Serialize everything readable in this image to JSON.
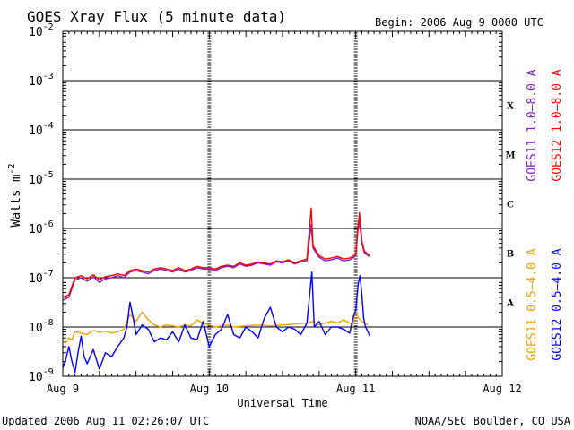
{
  "chart_data": {
    "type": "line",
    "title": "GOES Xray Flux (5 minute data)",
    "begin_label": "Begin:  2006 Aug 9 0000 UTC",
    "xlabel": "Universal Time",
    "ylabel": "Watts m",
    "ylabel_exponent": "-2",
    "yscale": "log",
    "ylim": [
      1e-09,
      0.01
    ],
    "xlim": [
      "Aug 9 00:00",
      "Aug 12 00:00"
    ],
    "x_unit": "hours since Aug 9 00:00 UTC",
    "x_ticks": [
      {
        "x": 0,
        "label": "Aug 9"
      },
      {
        "x": 24,
        "label": "Aug 10"
      },
      {
        "x": 48,
        "label": "Aug 11"
      },
      {
        "x": 72,
        "label": "Aug 12"
      }
    ],
    "y_ticks": [
      {
        "exp": -2,
        "base": "10",
        "sup": "-2"
      },
      {
        "exp": -3,
        "base": "10",
        "sup": "-3"
      },
      {
        "exp": -4,
        "base": "10",
        "sup": "-4"
      },
      {
        "exp": -5,
        "base": "10",
        "sup": "-5"
      },
      {
        "exp": -6,
        "base": "10",
        "sup": "-6"
      },
      {
        "exp": -7,
        "base": "10",
        "sup": "-7"
      },
      {
        "exp": -8,
        "base": "10",
        "sup": "-8"
      },
      {
        "exp": -9,
        "base": "10",
        "sup": "-9"
      }
    ],
    "class_labels": [
      {
        "label": "X",
        "exp": -3.5
      },
      {
        "label": "M",
        "exp": -4.5
      },
      {
        "label": "C",
        "exp": -5.5
      },
      {
        "label": "B",
        "exp": -6.5
      },
      {
        "label": "A",
        "exp": -7.5
      }
    ],
    "grid_horizontal": true,
    "day_markers": true,
    "series": [
      {
        "name": "GOES11 0.5–4.0 A",
        "color": "#f0a000",
        "points": [
          [
            0,
            5e-09
          ],
          [
            0.5,
            4.8e-09
          ],
          [
            1,
            6e-09
          ],
          [
            1.5,
            5.5e-09
          ],
          [
            2,
            8e-09
          ],
          [
            3,
            7.5e-09
          ],
          [
            4,
            7e-09
          ],
          [
            5,
            8.5e-09
          ],
          [
            6,
            7.8e-09
          ],
          [
            7,
            8.2e-09
          ],
          [
            8,
            7.5e-09
          ],
          [
            9,
            8e-09
          ],
          [
            10,
            9e-09
          ],
          [
            11,
            1.8e-08
          ],
          [
            12,
            1.3e-08
          ],
          [
            13,
            2e-08
          ],
          [
            14,
            1.4e-08
          ],
          [
            15,
            1.1e-08
          ],
          [
            16,
            1e-08
          ],
          [
            17,
            1.1e-08
          ],
          [
            18,
            1.05e-08
          ],
          [
            19,
            1e-08
          ],
          [
            20,
            1.1e-08
          ],
          [
            21,
            1.05e-08
          ],
          [
            22,
            1.4e-08
          ],
          [
            23,
            1.2e-08
          ],
          [
            24,
            1.1e-08
          ],
          [
            25,
            1e-08
          ],
          [
            26,
            1.05e-08
          ],
          [
            27,
            1.1e-08
          ],
          [
            28,
            1e-08
          ],
          [
            30,
            1.05e-08
          ],
          [
            32,
            1.1e-08
          ],
          [
            34,
            1.05e-08
          ],
          [
            36,
            1.1e-08
          ],
          [
            38,
            1.15e-08
          ],
          [
            40,
            1.2e-08
          ],
          [
            41,
            1.3e-08
          ],
          [
            42,
            1.1e-08
          ],
          [
            43,
            1.2e-08
          ],
          [
            44,
            1.3e-08
          ],
          [
            45,
            1.2e-08
          ],
          [
            46,
            1.4e-08
          ],
          [
            47,
            1.2e-08
          ],
          [
            47.5,
            1.1e-08
          ],
          [
            48,
            2e-08
          ],
          [
            48.5,
            1.5e-08
          ],
          [
            49,
            1.3e-08
          ],
          [
            49.5,
            1.2e-08
          ],
          [
            50,
            1.1e-08
          ]
        ]
      },
      {
        "name": "GOES12 0.5–4.0 A",
        "color": "#0000ff",
        "points": [
          [
            0,
            1.5e-09
          ],
          [
            0.5,
            2.2e-09
          ],
          [
            1,
            4e-09
          ],
          [
            1.5,
            2e-09
          ],
          [
            2,
            1.2e-09
          ],
          [
            2.5,
            3e-09
          ],
          [
            3,
            6.5e-09
          ],
          [
            3.5,
            2.5e-09
          ],
          [
            4,
            1.8e-09
          ],
          [
            5,
            3.5e-09
          ],
          [
            6,
            1.4e-09
          ],
          [
            7,
            3e-09
          ],
          [
            8,
            2.5e-09
          ],
          [
            9,
            4e-09
          ],
          [
            10,
            6e-09
          ],
          [
            10.5,
            1e-08
          ],
          [
            11,
            3.2e-08
          ],
          [
            11.5,
            1.6e-08
          ],
          [
            12,
            7e-09
          ],
          [
            13,
            1.1e-08
          ],
          [
            14,
            9e-09
          ],
          [
            15,
            5e-09
          ],
          [
            16,
            6e-09
          ],
          [
            17,
            5.5e-09
          ],
          [
            18,
            8e-09
          ],
          [
            19,
            5e-09
          ],
          [
            20,
            1.1e-08
          ],
          [
            21,
            6e-09
          ],
          [
            22,
            5.5e-09
          ],
          [
            23,
            1.3e-08
          ],
          [
            24,
            4e-09
          ],
          [
            25,
            7e-09
          ],
          [
            26,
            9e-09
          ],
          [
            27,
            1.8e-08
          ],
          [
            28,
            7e-09
          ],
          [
            29,
            6e-09
          ],
          [
            30,
            1e-08
          ],
          [
            31,
            8e-09
          ],
          [
            32,
            6e-09
          ],
          [
            33,
            1.5e-08
          ],
          [
            34,
            2.5e-08
          ],
          [
            35,
            1e-08
          ],
          [
            36,
            8e-09
          ],
          [
            37,
            1e-08
          ],
          [
            38,
            9e-09
          ],
          [
            39,
            7e-09
          ],
          [
            40,
            1.2e-08
          ],
          [
            40.8,
            1.3e-07
          ],
          [
            41.2,
            1e-08
          ],
          [
            42,
            1.3e-08
          ],
          [
            43,
            7e-09
          ],
          [
            44,
            1e-08
          ],
          [
            45,
            1e-08
          ],
          [
            46,
            9e-09
          ],
          [
            47,
            7.5e-09
          ],
          [
            47.6,
            1.6e-08
          ],
          [
            48,
            2.2e-08
          ],
          [
            48.4,
            7.5e-08
          ],
          [
            48.7,
            1.1e-07
          ],
          [
            49,
            4.5e-08
          ],
          [
            49.3,
            1.5e-08
          ],
          [
            49.6,
            1e-08
          ],
          [
            50,
            8e-09
          ],
          [
            50.3,
            6.5e-09
          ]
        ]
      },
      {
        "name": "GOES11 1.0–8.0 A",
        "color": "#8020c0",
        "points": [
          [
            0,
            3.5e-08
          ],
          [
            1,
            4e-08
          ],
          [
            2,
            9e-08
          ],
          [
            3,
            1e-07
          ],
          [
            4,
            8.5e-08
          ],
          [
            5,
            1.05e-07
          ],
          [
            6,
            8e-08
          ],
          [
            7,
            9.5e-08
          ],
          [
            8,
            1e-07
          ],
          [
            9,
            1.1e-07
          ],
          [
            10,
            1e-07
          ],
          [
            11,
            1.3e-07
          ],
          [
            12,
            1.4e-07
          ],
          [
            13,
            1.3e-07
          ],
          [
            14,
            1.2e-07
          ],
          [
            15,
            1.4e-07
          ],
          [
            16,
            1.5e-07
          ],
          [
            17,
            1.4e-07
          ],
          [
            18,
            1.3e-07
          ],
          [
            19,
            1.5e-07
          ],
          [
            20,
            1.3e-07
          ],
          [
            21,
            1.4e-07
          ],
          [
            22,
            1.6e-07
          ],
          [
            23,
            1.5e-07
          ],
          [
            24,
            1.5e-07
          ],
          [
            25,
            1.4e-07
          ],
          [
            26,
            1.6e-07
          ],
          [
            27,
            1.7e-07
          ],
          [
            28,
            1.6e-07
          ],
          [
            29,
            1.9e-07
          ],
          [
            30,
            1.7e-07
          ],
          [
            31,
            1.8e-07
          ],
          [
            32,
            2e-07
          ],
          [
            33,
            1.9e-07
          ],
          [
            34,
            1.8e-07
          ],
          [
            35,
            2.1e-07
          ],
          [
            36,
            2e-07
          ],
          [
            37,
            2.2e-07
          ],
          [
            38,
            1.9e-07
          ],
          [
            39,
            2.1e-07
          ],
          [
            40,
            2.2e-07
          ],
          [
            40.7,
            1.2e-06
          ],
          [
            41,
            4e-07
          ],
          [
            42,
            2.6e-07
          ],
          [
            43,
            2.2e-07
          ],
          [
            44,
            2.3e-07
          ],
          [
            45,
            2.5e-07
          ],
          [
            46,
            2.2e-07
          ],
          [
            47,
            2.3e-07
          ],
          [
            47.7,
            2.6e-07
          ],
          [
            48,
            2.8e-07
          ],
          [
            48.3,
            8e-07
          ],
          [
            48.6,
            1.4e-06
          ],
          [
            49,
            5e-07
          ],
          [
            49.4,
            3.2e-07
          ],
          [
            50,
            2.8e-07
          ],
          [
            50.3,
            2.7e-07
          ]
        ]
      },
      {
        "name": "GOES12 1.0–8.0 A",
        "color": "#ff0000",
        "points": [
          [
            0,
            4e-08
          ],
          [
            1,
            4.5e-08
          ],
          [
            2,
            1e-07
          ],
          [
            3,
            1.1e-07
          ],
          [
            4,
            9.5e-08
          ],
          [
            5,
            1.15e-07
          ],
          [
            6,
            9e-08
          ],
          [
            7,
            1.05e-07
          ],
          [
            8,
            1.1e-07
          ],
          [
            9,
            1.2e-07
          ],
          [
            10,
            1.1e-07
          ],
          [
            11,
            1.4e-07
          ],
          [
            12,
            1.5e-07
          ],
          [
            13,
            1.4e-07
          ],
          [
            14,
            1.3e-07
          ],
          [
            15,
            1.5e-07
          ],
          [
            16,
            1.6e-07
          ],
          [
            17,
            1.5e-07
          ],
          [
            18,
            1.4e-07
          ],
          [
            19,
            1.6e-07
          ],
          [
            20,
            1.4e-07
          ],
          [
            21,
            1.5e-07
          ],
          [
            22,
            1.7e-07
          ],
          [
            23,
            1.6e-07
          ],
          [
            24,
            1.6e-07
          ],
          [
            25,
            1.5e-07
          ],
          [
            26,
            1.7e-07
          ],
          [
            27,
            1.8e-07
          ],
          [
            28,
            1.7e-07
          ],
          [
            29,
            2e-07
          ],
          [
            30,
            1.8e-07
          ],
          [
            31,
            1.9e-07
          ],
          [
            32,
            2.1e-07
          ],
          [
            33,
            2e-07
          ],
          [
            34,
            1.9e-07
          ],
          [
            35,
            2.2e-07
          ],
          [
            36,
            2.1e-07
          ],
          [
            37,
            2.3e-07
          ],
          [
            38,
            2e-07
          ],
          [
            39,
            2.2e-07
          ],
          [
            40,
            2.4e-07
          ],
          [
            40.7,
            2.6e-06
          ],
          [
            41,
            4.5e-07
          ],
          [
            42,
            2.8e-07
          ],
          [
            43,
            2.4e-07
          ],
          [
            44,
            2.5e-07
          ],
          [
            45,
            2.7e-07
          ],
          [
            46,
            2.4e-07
          ],
          [
            47,
            2.5e-07
          ],
          [
            47.7,
            2.8e-07
          ],
          [
            48,
            3e-07
          ],
          [
            48.3,
            9e-07
          ],
          [
            48.6,
            2.1e-06
          ],
          [
            49,
            5.5e-07
          ],
          [
            49.4,
            3.5e-07
          ],
          [
            50,
            3e-07
          ],
          [
            50.3,
            2.9e-07
          ]
        ]
      }
    ]
  },
  "footer": {
    "updated": "Updated 2006 Aug 11 02:26:07 UTC",
    "credit": "NOAA/SEC Boulder, CO USA"
  }
}
